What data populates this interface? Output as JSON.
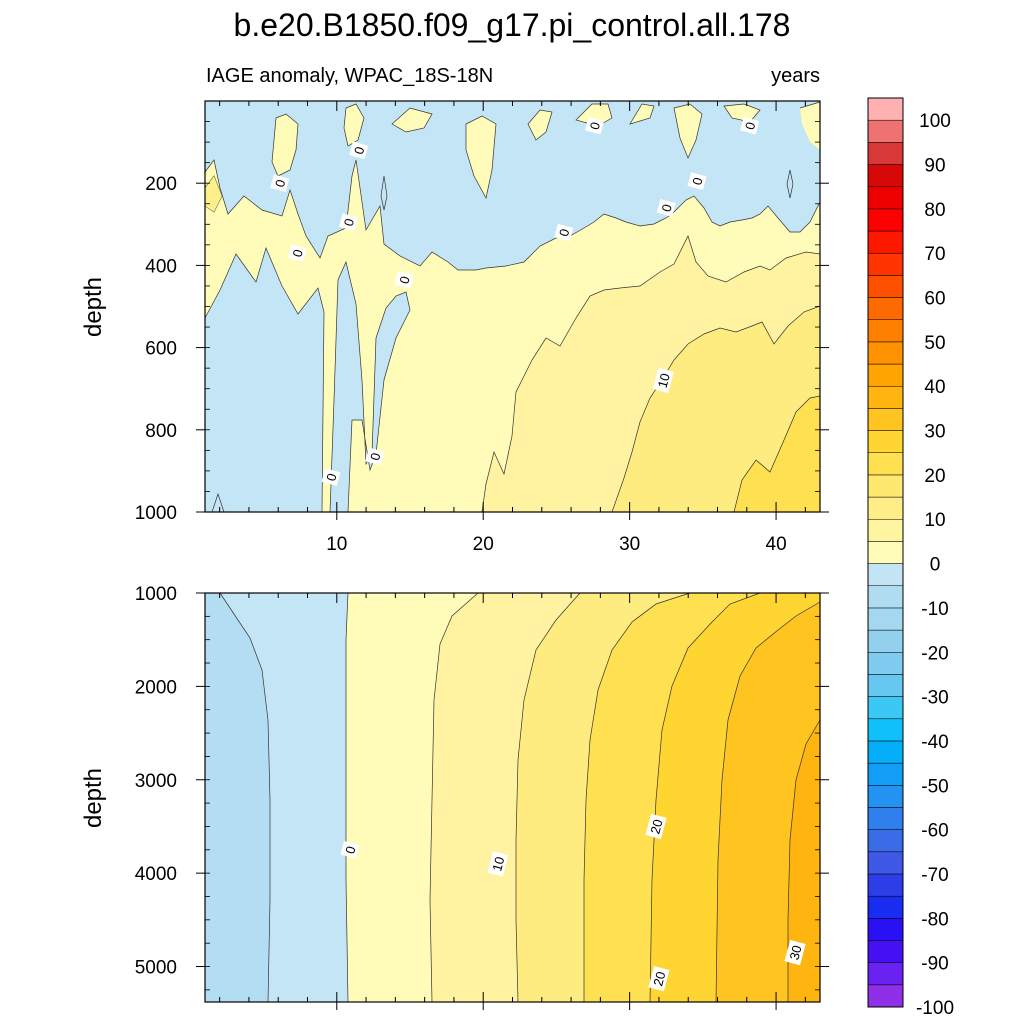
{
  "chart_data": {
    "type": "heatmap",
    "title": "b.e20.B1850.f09_g17.pi_control.all.178",
    "subtitle_left": "IAGE anomaly, WPAC_18S-18N",
    "subtitle_right": "years",
    "ylabel": "depth",
    "xlim": [
      1,
      43
    ],
    "x_ticks": [
      "10",
      "20",
      "30",
      "40"
    ],
    "upper_panel": {
      "ylim": [
        0,
        1000
      ],
      "y_ticks": [
        "200",
        "400",
        "600",
        "800",
        "1000"
      ],
      "x_ticks": [
        "10",
        "20",
        "30",
        "40"
      ],
      "contour_labels": [
        {
          "text": "0",
          "x": 6.1,
          "y": 200
        },
        {
          "text": "0",
          "x": 7.3,
          "y": 370
        },
        {
          "text": "0",
          "x": 10.8,
          "y": 295
        },
        {
          "text": "0",
          "x": 11.5,
          "y": 120
        },
        {
          "text": "0",
          "x": 9.6,
          "y": 915
        },
        {
          "text": "0",
          "x": 12.6,
          "y": 865
        },
        {
          "text": "0",
          "x": 14.6,
          "y": 435
        },
        {
          "text": "0",
          "x": 25.5,
          "y": 320
        },
        {
          "text": "0",
          "x": 27.6,
          "y": 60
        },
        {
          "text": "0",
          "x": 32.5,
          "y": 260
        },
        {
          "text": "0",
          "x": 34.6,
          "y": 195
        },
        {
          "text": "0",
          "x": 38.2,
          "y": 60
        },
        {
          "text": "10",
          "x": 32.3,
          "y": 680
        }
      ]
    },
    "lower_panel": {
      "ylim": [
        1000,
        5380
      ],
      "y_ticks": [
        "1000",
        "2000",
        "3000",
        "4000",
        "5000"
      ],
      "contour_labels": [
        {
          "text": "0",
          "x": 10.9,
          "y": 3750
        },
        {
          "text": "10",
          "x": 21.0,
          "y": 3900
        },
        {
          "text": "20",
          "x": 31.8,
          "y": 3500
        },
        {
          "text": "20",
          "x": 32.0,
          "y": 5130
        },
        {
          "text": "30",
          "x": 41.3,
          "y": 4850
        }
      ]
    },
    "colorbar": {
      "levels": [
        -100,
        -95,
        -90,
        -85,
        -80,
        -75,
        -70,
        -65,
        -60,
        -55,
        -50,
        -45,
        -40,
        -35,
        -30,
        -25,
        -20,
        -15,
        -10,
        -5,
        0,
        5,
        10,
        15,
        20,
        25,
        30,
        35,
        40,
        45,
        50,
        55,
        60,
        65,
        70,
        75,
        80,
        85,
        90,
        95,
        100
      ],
      "labels": [
        "100",
        "90",
        "80",
        "70",
        "60",
        "50",
        "40",
        "30",
        "20",
        "10",
        "0",
        "-10",
        "-20",
        "-30",
        "-40",
        "-50",
        "-60",
        "-70",
        "-80",
        "-90",
        "-100"
      ],
      "colors_bottom_to_top": [
        "#8f30e8",
        "#6a22f2",
        "#4610f5",
        "#2a10f5",
        "#1a2cf0",
        "#2d3ee8",
        "#3f58e6",
        "#3a6ce8",
        "#2f80ee",
        "#2492f0",
        "#129ef6",
        "#05aef8",
        "#10c0f8",
        "#3cc8f5",
        "#66c8f0",
        "#80ccf0",
        "#92d0ee",
        "#a3d8f0",
        "#b0dcf2",
        "#c2e4f5",
        "#fffbb8",
        "#fff4a0",
        "#ffee88",
        "#ffe870",
        "#ffe050",
        "#ffd532",
        "#ffc420",
        "#ffb410",
        "#ffa400",
        "#ff9200",
        "#ff8000",
        "#ff6a00",
        "#ff5000",
        "#ff3400",
        "#ff1800",
        "#ff0000",
        "#ee0000",
        "#d80808",
        "#d83838",
        "#ee7272",
        "#ffb0b0"
      ]
    }
  }
}
